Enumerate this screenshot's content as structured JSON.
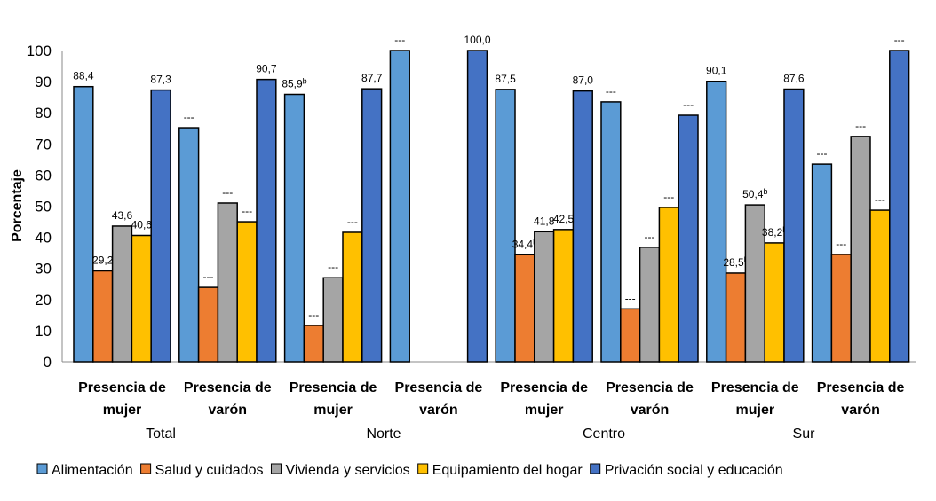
{
  "chart_data": {
    "type": "bar",
    "ylabel": "Porcentaje",
    "ylim": [
      0,
      100
    ],
    "yticks": [
      0,
      10,
      20,
      30,
      40,
      50,
      60,
      70,
      80,
      90,
      100
    ],
    "grid": false,
    "legend_position": "bottom",
    "categories": [
      {
        "label": [
          "Presencia de",
          "mujer"
        ],
        "region": "Total"
      },
      {
        "label": [
          "Presencia de",
          "varón"
        ],
        "region": "Total"
      },
      {
        "label": [
          "Presencia de",
          "mujer"
        ],
        "region": "Norte"
      },
      {
        "label": [
          "Presencia de",
          "varón"
        ],
        "region": "Norte"
      },
      {
        "label": [
          "Presencia de",
          "mujer"
        ],
        "region": "Centro"
      },
      {
        "label": [
          "Presencia de",
          "varón"
        ],
        "region": "Centro"
      },
      {
        "label": [
          "Presencia de",
          "mujer"
        ],
        "region": "Sur"
      },
      {
        "label": [
          "Presencia de",
          "varón"
        ],
        "region": "Sur"
      }
    ],
    "regions": [
      "Total",
      "Norte",
      "Centro",
      "Sur"
    ],
    "series": [
      {
        "name": "Alimentación",
        "color": "#5B9BD5",
        "values": [
          88.4,
          75.2,
          85.9,
          100.0,
          87.5,
          83.5,
          90.1,
          63.5
        ],
        "labels": [
          "88,4",
          "---",
          "85,9",
          "---",
          "87,5",
          "---",
          "90,1",
          "---"
        ],
        "sup": [
          "",
          "",
          "b",
          "",
          "",
          "",
          "",
          ""
        ]
      },
      {
        "name": "Salud y cuidados",
        "color": "#ED7D31",
        "values": [
          29.2,
          23.9,
          11.7,
          null,
          34.4,
          17.0,
          28.5,
          34.5
        ],
        "labels": [
          "29,2",
          "---",
          "---",
          "",
          "34,4",
          "---",
          "28,5",
          "---"
        ],
        "sup": [
          "",
          "",
          "",
          "",
          "b",
          "",
          "b",
          ""
        ]
      },
      {
        "name": "Vivienda y servicios",
        "color": "#A5A5A5",
        "values": [
          43.6,
          51.0,
          27.0,
          null,
          41.8,
          36.8,
          50.4,
          72.4
        ],
        "labels": [
          "43,6",
          "---",
          "---",
          "",
          "41,8",
          "---",
          "50,4",
          "---"
        ],
        "sup": [
          "",
          "",
          "",
          "",
          "",
          "",
          "b",
          ""
        ]
      },
      {
        "name": "Equipamiento del hogar",
        "color": "#FFC000",
        "values": [
          40.6,
          45.0,
          41.6,
          null,
          42.5,
          49.6,
          38.2,
          48.7
        ],
        "labels": [
          "40,6",
          "---",
          "---",
          "",
          "42,5",
          "---",
          "38,2",
          "---"
        ],
        "sup": [
          "",
          "",
          "",
          "",
          "",
          "",
          "b",
          ""
        ]
      },
      {
        "name": "Privación social y educación",
        "color": "#4472C4",
        "values": [
          87.3,
          90.7,
          87.7,
          100.0,
          87.0,
          79.2,
          87.6,
          100.0
        ],
        "labels": [
          "87,3",
          "90,7",
          "87,7",
          "100,0",
          "87,0",
          "---",
          "87,6",
          "---"
        ],
        "sup": [
          "",
          "",
          "",
          "",
          "",
          "",
          "",
          ""
        ]
      }
    ]
  }
}
